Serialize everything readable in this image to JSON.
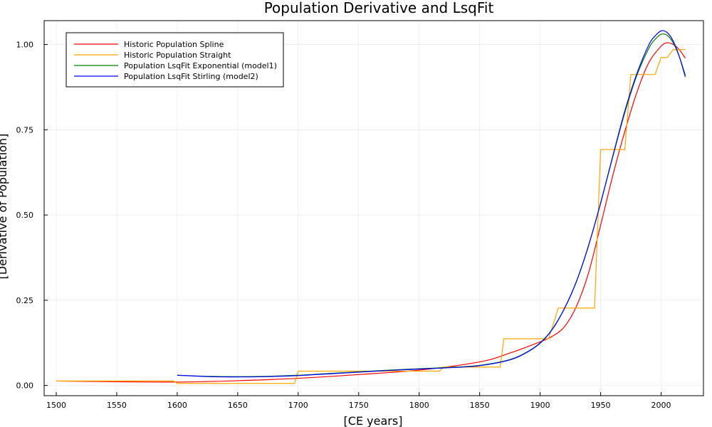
{
  "chart_data": {
    "type": "line",
    "title": "Population Derivative and LsqFit",
    "xlabel": "[CE years]",
    "ylabel": "[Derivative of Population]",
    "xlim": [
      1490,
      2035
    ],
    "ylim": [
      -0.03,
      1.07
    ],
    "xticks": [
      1500,
      1550,
      1600,
      1650,
      1700,
      1750,
      1800,
      1850,
      1900,
      1950,
      2000
    ],
    "xtick_labels": [
      "1500",
      "1550",
      "1600",
      "1650",
      "1700",
      "1750",
      "1800",
      "1850",
      "1900",
      "1950",
      "2000"
    ],
    "yticks": [
      0.0,
      0.25,
      0.5,
      0.75,
      1.0
    ],
    "ytick_labels": [
      "0.00",
      "0.25",
      "0.50",
      "0.75",
      "1.00"
    ],
    "grid": true,
    "legend_position": "top-left",
    "series": [
      {
        "name": "Historic Population Spline",
        "color": "#ff0000",
        "style": "smooth",
        "x": [
          1500,
          1550,
          1600,
          1650,
          1700,
          1750,
          1800,
          1850,
          1875,
          1900,
          1910,
          1920,
          1930,
          1940,
          1950,
          1960,
          1970,
          1980,
          1990,
          2000,
          2005,
          2010,
          2015,
          2020
        ],
        "y": [
          0.013,
          0.011,
          0.01,
          0.014,
          0.021,
          0.032,
          0.045,
          0.069,
          0.095,
          0.128,
          0.144,
          0.172,
          0.232,
          0.33,
          0.47,
          0.615,
          0.745,
          0.86,
          0.948,
          0.995,
          1.005,
          1.0,
          0.985,
          0.96
        ]
      },
      {
        "name": "Historic Population Straight",
        "color": "#ffa500",
        "style": "linear",
        "x": [
          1500,
          1597,
          1600,
          1697,
          1700,
          1817,
          1820,
          1867,
          1870,
          1907,
          1915,
          1945,
          1950,
          1970,
          1975,
          1995,
          2000,
          2005,
          2010,
          2020
        ],
        "y": [
          0.013,
          0.013,
          0.006,
          0.006,
          0.042,
          0.042,
          0.054,
          0.054,
          0.137,
          0.137,
          0.227,
          0.227,
          0.692,
          0.692,
          0.912,
          0.912,
          0.962,
          0.962,
          0.985,
          0.985
        ]
      },
      {
        "name": "Population LsqFit Exponential (model1)",
        "color": "#008000",
        "style": "smooth",
        "x": [
          1600,
          1625,
          1650,
          1675,
          1700,
          1725,
          1750,
          1775,
          1800,
          1825,
          1850,
          1875,
          1890,
          1900,
          1910,
          1920,
          1930,
          1940,
          1950,
          1960,
          1970,
          1980,
          1990,
          1995,
          2000,
          2005,
          2010,
          2015,
          2020
        ],
        "y": [
          0.03,
          0.027,
          0.026,
          0.027,
          0.03,
          0.035,
          0.04,
          0.045,
          0.049,
          0.053,
          0.059,
          0.076,
          0.1,
          0.125,
          0.165,
          0.225,
          0.305,
          0.41,
          0.535,
          0.67,
          0.8,
          0.91,
          0.99,
          1.015,
          1.03,
          1.027,
          1.005,
          0.965,
          0.91
        ]
      },
      {
        "name": "Population LsqFit Stirling (model2)",
        "color": "#0000ff",
        "style": "smooth",
        "x": [
          1600,
          1625,
          1650,
          1675,
          1700,
          1725,
          1750,
          1775,
          1800,
          1825,
          1850,
          1875,
          1890,
          1900,
          1910,
          1920,
          1930,
          1940,
          1950,
          1960,
          1970,
          1980,
          1990,
          1995,
          2000,
          2005,
          2010,
          2015,
          2020
        ],
        "y": [
          0.03,
          0.026,
          0.025,
          0.026,
          0.029,
          0.034,
          0.039,
          0.044,
          0.048,
          0.052,
          0.058,
          0.075,
          0.099,
          0.124,
          0.164,
          0.225,
          0.305,
          0.41,
          0.535,
          0.672,
          0.805,
          0.915,
          1.0,
          1.025,
          1.04,
          1.035,
          1.01,
          0.965,
          0.905
        ]
      }
    ]
  }
}
